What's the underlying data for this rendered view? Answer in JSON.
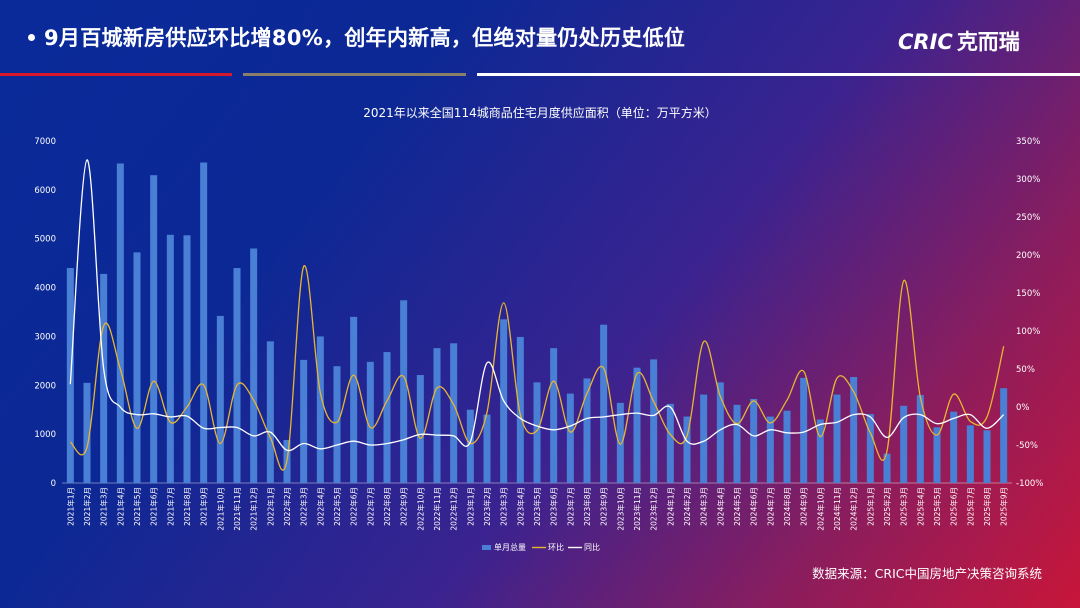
{
  "header": {
    "headline": "9月百城新房供应环比增80%，创年内新高，但绝对量仍处历史低位",
    "logo_latin": "CRIC",
    "logo_cn": "克而瑞"
  },
  "source": "数据来源：CRIC中国房地产决策咨询系统",
  "colors": {
    "bar": "#4a7fd6",
    "mom": "#e8b530",
    "yoy": "#ffffff",
    "accent_red": "#d7182a",
    "accent_gold": "#8a7f6a"
  },
  "chart_data": {
    "type": "bar",
    "title": "2021年以来全国114城商品住宅月度供应面积（单位：万平方米）",
    "categories": [
      "2021年1月",
      "2021年2月",
      "2021年3月",
      "2021年4月",
      "2021年5月",
      "2021年6月",
      "2021年7月",
      "2021年8月",
      "2021年9月",
      "2021年10月",
      "2021年11月",
      "2021年12月",
      "2022年1月",
      "2022年2月",
      "2022年3月",
      "2022年4月",
      "2022年5月",
      "2022年6月",
      "2022年7月",
      "2022年8月",
      "2022年9月",
      "2022年10月",
      "2022年11月",
      "2022年12月",
      "2023年1月",
      "2023年2月",
      "2023年3月",
      "2023年4月",
      "2023年5月",
      "2023年6月",
      "2023年7月",
      "2023年8月",
      "2023年9月",
      "2023年10月",
      "2023年11月",
      "2023年12月",
      "2024年1月",
      "2024年2月",
      "2024年3月",
      "2024年4月",
      "2024年5月",
      "2024年6月",
      "2024年7月",
      "2024年8月",
      "2024年9月",
      "2024年10月",
      "2024年11月",
      "2024年12月",
      "2025年1月",
      "2025年2月",
      "2025年3月",
      "2025年4月",
      "2025年5月",
      "2025年6月",
      "2025年7月",
      "2025年8月",
      "2025年9月"
    ],
    "y_left": {
      "min": 0,
      "max": 7000,
      "step": 1000,
      "ticks": [
        "0",
        "1000",
        "2000",
        "3000",
        "4000",
        "5000",
        "6000",
        "7000"
      ]
    },
    "y_right": {
      "min": -100,
      "max": 350,
      "step": 50,
      "ticks": [
        "-100%",
        "-50%",
        "0%",
        "50%",
        "100%",
        "150%",
        "200%",
        "250%",
        "300%",
        "350%"
      ]
    },
    "legend": [
      "单月总量",
      "环比",
      "同比"
    ],
    "legend_position": "bottom",
    "series": [
      {
        "name": "单月总量",
        "type": "bar",
        "axis": "left",
        "values": [
          4400,
          2050,
          4280,
          6540,
          4720,
          6300,
          5080,
          5070,
          6560,
          3420,
          4400,
          4800,
          2900,
          880,
          2520,
          3000,
          2390,
          3400,
          2480,
          2680,
          3740,
          2210,
          2760,
          2860,
          1500,
          1400,
          3350,
          2990,
          2060,
          2760,
          1830,
          2140,
          3240,
          1640,
          2360,
          2530,
          1620,
          1360,
          1810,
          2060,
          1600,
          1720,
          1360,
          1480,
          2150,
          1300,
          1810,
          2170,
          1410,
          600,
          1580,
          1800,
          1140,
          1460,
          1180,
          1080,
          1940
        ]
      },
      {
        "name": "环比",
        "type": "line",
        "axis": "right",
        "values": [
          -46,
          -53,
          107,
          50,
          -28,
          34,
          -20,
          0,
          29,
          -48,
          29,
          9,
          -40,
          -70,
          185,
          19,
          -20,
          42,
          -27,
          8,
          40,
          -41,
          25,
          3,
          -48,
          -7,
          137,
          -10,
          -31,
          34,
          -33,
          18,
          51,
          -49,
          44,
          7,
          -36,
          -38,
          86,
          14,
          -22,
          8,
          -21,
          9,
          47,
          -39,
          38,
          20,
          -34,
          -58,
          166,
          13,
          -37,
          17,
          -19,
          -13,
          80
        ]
      },
      {
        "name": "同比",
        "type": "line",
        "axis": "right",
        "values": [
          30,
          325,
          50,
          0,
          -10,
          -9,
          -13,
          -12,
          -28,
          -27,
          -27,
          -38,
          -33,
          -57,
          -48,
          -55,
          -50,
          -45,
          -50,
          -48,
          -43,
          -36,
          -37,
          -38,
          -46,
          58,
          8,
          -15,
          -25,
          -30,
          -25,
          -15,
          -13,
          -10,
          -8,
          -11,
          0,
          -45,
          -45,
          -30,
          -23,
          -38,
          -30,
          -34,
          -33,
          -23,
          -20,
          -10,
          -13,
          -40,
          -14,
          -10,
          -22,
          -15,
          -10,
          -28,
          -10
        ]
      }
    ]
  }
}
